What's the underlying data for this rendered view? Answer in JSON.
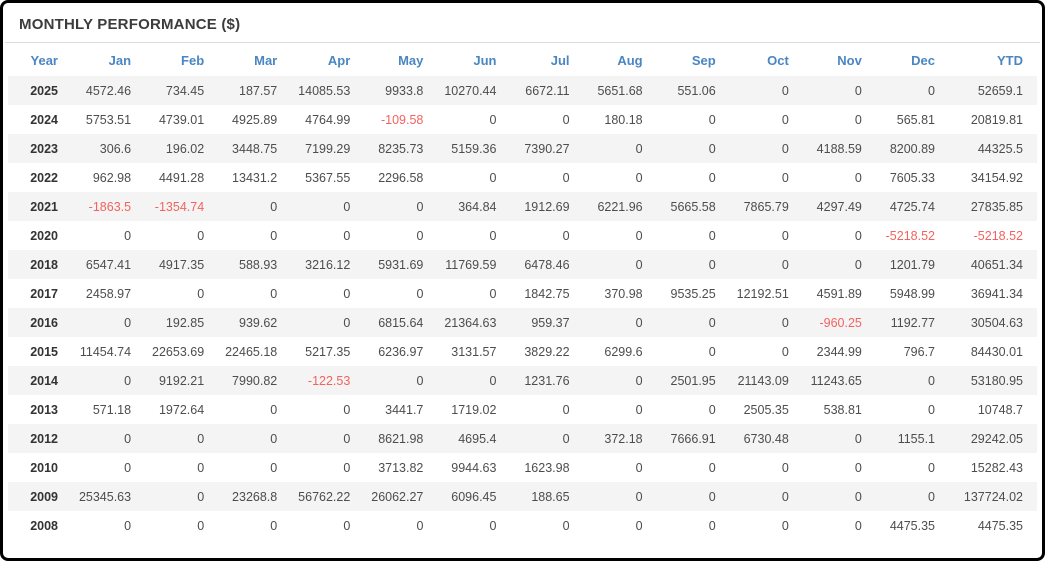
{
  "widget": {
    "title": "MONTHLY PERFORMANCE ($)"
  },
  "colors": {
    "header_text": "#4a86c2",
    "negative_value": "#f2635f",
    "title_text": "#3c3c3c",
    "cell_text": "#4d4d4d",
    "row_stripe": "#f4f4f4"
  },
  "table": {
    "columns": [
      "Year",
      "Jan",
      "Feb",
      "Mar",
      "Apr",
      "May",
      "Jun",
      "Jul",
      "Aug",
      "Sep",
      "Oct",
      "Nov",
      "Dec",
      "YTD"
    ],
    "rows": [
      {
        "year": "2025",
        "values": [
          "4572.46",
          "734.45",
          "187.57",
          "14085.53",
          "9933.8",
          "10270.44",
          "6672.11",
          "5651.68",
          "551.06",
          "0",
          "0",
          "0",
          "52659.1"
        ]
      },
      {
        "year": "2024",
        "values": [
          "5753.51",
          "4739.01",
          "4925.89",
          "4764.99",
          "-109.58",
          "0",
          "0",
          "180.18",
          "0",
          "0",
          "0",
          "565.81",
          "20819.81"
        ]
      },
      {
        "year": "2023",
        "values": [
          "306.6",
          "196.02",
          "3448.75",
          "7199.29",
          "8235.73",
          "5159.36",
          "7390.27",
          "0",
          "0",
          "0",
          "4188.59",
          "8200.89",
          "44325.5"
        ]
      },
      {
        "year": "2022",
        "values": [
          "962.98",
          "4491.28",
          "13431.2",
          "5367.55",
          "2296.58",
          "0",
          "0",
          "0",
          "0",
          "0",
          "0",
          "7605.33",
          "34154.92"
        ]
      },
      {
        "year": "2021",
        "values": [
          "-1863.5",
          "-1354.74",
          "0",
          "0",
          "0",
          "364.84",
          "1912.69",
          "6221.96",
          "5665.58",
          "7865.79",
          "4297.49",
          "4725.74",
          "27835.85"
        ]
      },
      {
        "year": "2020",
        "values": [
          "0",
          "0",
          "0",
          "0",
          "0",
          "0",
          "0",
          "0",
          "0",
          "0",
          "0",
          "-5218.52",
          "-5218.52"
        ]
      },
      {
        "year": "2018",
        "values": [
          "6547.41",
          "4917.35",
          "588.93",
          "3216.12",
          "5931.69",
          "11769.59",
          "6478.46",
          "0",
          "0",
          "0",
          "0",
          "1201.79",
          "40651.34"
        ]
      },
      {
        "year": "2017",
        "values": [
          "2458.97",
          "0",
          "0",
          "0",
          "0",
          "0",
          "1842.75",
          "370.98",
          "9535.25",
          "12192.51",
          "4591.89",
          "5948.99",
          "36941.34"
        ]
      },
      {
        "year": "2016",
        "values": [
          "0",
          "192.85",
          "939.62",
          "0",
          "6815.64",
          "21364.63",
          "959.37",
          "0",
          "0",
          "0",
          "-960.25",
          "1192.77",
          "30504.63"
        ]
      },
      {
        "year": "2015",
        "values": [
          "11454.74",
          "22653.69",
          "22465.18",
          "5217.35",
          "6236.97",
          "3131.57",
          "3829.22",
          "6299.6",
          "0",
          "0",
          "2344.99",
          "796.7",
          "84430.01"
        ]
      },
      {
        "year": "2014",
        "values": [
          "0",
          "9192.21",
          "7990.82",
          "-122.53",
          "0",
          "0",
          "1231.76",
          "0",
          "2501.95",
          "21143.09",
          "11243.65",
          "0",
          "53180.95"
        ]
      },
      {
        "year": "2013",
        "values": [
          "571.18",
          "1972.64",
          "0",
          "0",
          "3441.7",
          "1719.02",
          "0",
          "0",
          "0",
          "2505.35",
          "538.81",
          "0",
          "10748.7"
        ]
      },
      {
        "year": "2012",
        "values": [
          "0",
          "0",
          "0",
          "0",
          "8621.98",
          "4695.4",
          "0",
          "372.18",
          "7666.91",
          "6730.48",
          "0",
          "1155.1",
          "29242.05"
        ]
      },
      {
        "year": "2010",
        "values": [
          "0",
          "0",
          "0",
          "0",
          "3713.82",
          "9944.63",
          "1623.98",
          "0",
          "0",
          "0",
          "0",
          "0",
          "15282.43"
        ]
      },
      {
        "year": "2009",
        "values": [
          "25345.63",
          "0",
          "23268.8",
          "56762.22",
          "26062.27",
          "6096.45",
          "188.65",
          "0",
          "0",
          "0",
          "0",
          "0",
          "137724.02"
        ]
      },
      {
        "year": "2008",
        "values": [
          "0",
          "0",
          "0",
          "0",
          "0",
          "0",
          "0",
          "0",
          "0",
          "0",
          "0",
          "4475.35",
          "4475.35"
        ]
      }
    ]
  }
}
